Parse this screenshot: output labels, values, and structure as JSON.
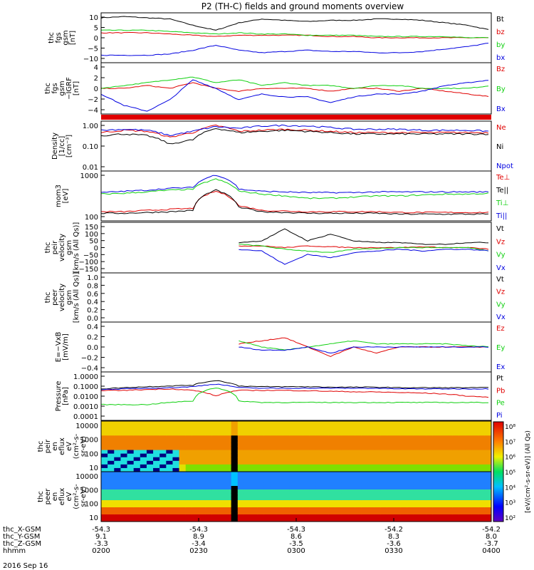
{
  "title": "P2 (TH-C) fields and ground moments overview",
  "date_label": "2016 Sep 16",
  "colors": {
    "black": "#000000",
    "red": "#e00000",
    "green": "#10d010",
    "blue": "#0000e0"
  },
  "chart_data": [
    {
      "type": "line",
      "ylabel": [
        "thc",
        "fgs",
        "gsm",
        "[nT]"
      ],
      "yticks": [
        "10",
        "5",
        "0",
        "−5",
        "−10"
      ],
      "ylim": [
        -10,
        10
      ],
      "series": [
        {
          "name": "Bt",
          "color": "#000000",
          "values": [
            8,
            8.5,
            8,
            7.5,
            5,
            3,
            6,
            7.5,
            7,
            6.5,
            7,
            7,
            7.5,
            7.5,
            7,
            6,
            5,
            3
          ]
        },
        {
          "name": "bz",
          "color": "#e00000",
          "values": [
            2,
            2,
            2,
            1.5,
            1,
            0.5,
            1,
            1,
            1,
            1,
            0.5,
            0.5,
            0,
            0,
            0,
            0,
            0,
            0
          ]
        },
        {
          "name": "by",
          "color": "#10d010",
          "values": [
            3,
            3,
            3,
            2.5,
            2,
            1.5,
            2,
            1.5,
            1.5,
            1,
            1,
            1,
            0.5,
            0.5,
            0.5,
            0.5,
            0,
            0
          ]
        },
        {
          "name": "bx",
          "color": "#0000e0",
          "values": [
            -7,
            -7,
            -7,
            -6.5,
            -5,
            -3,
            -5,
            -6,
            -5.5,
            -5,
            -5.5,
            -5.5,
            -6,
            -6,
            -5.5,
            -4.5,
            -3.5,
            -2
          ]
        }
      ]
    },
    {
      "type": "line",
      "ylabel": [
        "thc",
        "fgs",
        "gsm",
        "−IGRF",
        "[nT]"
      ],
      "yticks": [
        "4",
        "2",
        "0",
        "−2",
        "−4"
      ],
      "ylim": [
        -4.5,
        4.5
      ],
      "series": [
        {
          "name": "Bz",
          "color": "#e00000",
          "values": [
            0,
            0,
            0.5,
            0,
            1,
            0,
            -0.5,
            0,
            0,
            0,
            -0.5,
            0,
            0,
            -0.5,
            0,
            -0.5,
            -1,
            -1.5
          ]
        },
        {
          "name": "By",
          "color": "#10d010",
          "values": [
            0,
            0.5,
            1,
            1.5,
            2,
            1,
            1.5,
            0.5,
            1,
            0.5,
            0.5,
            0,
            0.5,
            0.5,
            0,
            0,
            0,
            0.5
          ]
        },
        {
          "name": "Bx",
          "color": "#0000e0",
          "values": [
            -1,
            -3,
            -4,
            -2,
            1.5,
            0,
            -2,
            -1,
            -1.5,
            -1.5,
            -2.5,
            -1.5,
            -1,
            -1,
            -0.5,
            0.5,
            1,
            1.5
          ]
        }
      ]
    },
    {
      "type": "line",
      "ylabel": [
        "Density",
        "[1/cc]",
        "[cm⁻³]"
      ],
      "yticks": [
        "1.00",
        "0.10",
        "0.01"
      ],
      "ylim": [
        0.01,
        1.2
      ],
      "log": true,
      "series": [
        {
          "name": "Ne",
          "color": "#e00000",
          "values": [
            0.4,
            0.5,
            0.45,
            0.25,
            0.4,
            0.8,
            0.45,
            0.5,
            0.55,
            0.5,
            0.45,
            0.4,
            0.4,
            0.4,
            0.4,
            0.4,
            0.4,
            0.4
          ]
        },
        {
          "name": "Ni",
          "color": "#000000",
          "values": [
            0.3,
            0.35,
            0.3,
            0.13,
            0.2,
            0.6,
            0.4,
            0.45,
            0.5,
            0.45,
            0.4,
            0.35,
            0.35,
            0.35,
            0.35,
            0.35,
            0.35,
            0.35
          ]
        },
        {
          "name": "Npot",
          "color": "#0000e0",
          "values": [
            0.5,
            0.55,
            0.5,
            0.3,
            0.45,
            0.7,
            0.6,
            0.75,
            0.8,
            0.75,
            0.65,
            0.55,
            0.55,
            0.55,
            0.5,
            0.5,
            0.5,
            0.45
          ]
        }
      ]
    },
    {
      "type": "line",
      "ylabel": [
        "mom3",
        "[eV]"
      ],
      "yticks": [
        "1000",
        "100"
      ],
      "ylim": [
        20,
        8000
      ],
      "log": true,
      "series": [
        {
          "name": "Te⊥",
          "color": "#e00000",
          "values": [
            60,
            60,
            70,
            80,
            90,
            700,
            120,
            70,
            65,
            60,
            60,
            60,
            60,
            55,
            55,
            55,
            55,
            55
          ]
        },
        {
          "name": "Te||",
          "color": "#000000",
          "values": [
            50,
            50,
            55,
            60,
            70,
            800,
            100,
            60,
            55,
            50,
            50,
            50,
            50,
            45,
            45,
            45,
            45,
            45
          ]
        },
        {
          "name": "Ti⊥",
          "color": "#10d010",
          "values": [
            500,
            550,
            650,
            800,
            900,
            3000,
            700,
            500,
            400,
            300,
            300,
            350,
            400,
            400,
            450,
            500,
            500,
            550
          ]
        },
        {
          "name": "Ti||",
          "color": "#0000e0",
          "values": [
            600,
            700,
            800,
            1000,
            1100,
            5000,
            900,
            700,
            650,
            600,
            600,
            600,
            650,
            650,
            650,
            650,
            650,
            650
          ]
        }
      ]
    },
    {
      "type": "line",
      "ylabel": [
        "thc",
        "peir",
        "velocity",
        "gsm",
        "[km/s (All Qs)]"
      ],
      "yticks": [
        "150",
        "100",
        "50",
        "0",
        "−50",
        "−100",
        "−150"
      ],
      "ylim": [
        -150,
        150
      ],
      "series": [
        {
          "name": "Vt",
          "color": "#000000",
          "values": [
            null,
            null,
            null,
            null,
            null,
            null,
            30,
            40,
            110,
            40,
            80,
            40,
            30,
            30,
            20,
            20,
            30,
            30
          ]
        },
        {
          "name": "Vz",
          "color": "#e00000",
          "values": [
            null,
            null,
            null,
            null,
            null,
            null,
            10,
            10,
            0,
            10,
            5,
            0,
            0,
            0,
            5,
            0,
            0,
            -10
          ]
        },
        {
          "name": "Vy",
          "color": "#10d010",
          "values": [
            null,
            null,
            null,
            null,
            null,
            null,
            20,
            10,
            -10,
            -20,
            -30,
            -10,
            -5,
            0,
            0,
            0,
            0,
            -20
          ]
        },
        {
          "name": "Vx",
          "color": "#0000e0",
          "values": [
            null,
            null,
            null,
            null,
            null,
            null,
            -10,
            -20,
            -100,
            -40,
            -60,
            -30,
            -20,
            -10,
            -20,
            -10,
            -10,
            -20
          ]
        }
      ]
    },
    {
      "type": "line",
      "ylabel": [
        "thc",
        "peer",
        "velocity",
        "gsm",
        "[km/s (All Qs)]"
      ],
      "yticks": [
        "1.0",
        "0.8",
        "0.6",
        "0.4",
        "0.2",
        "0.0"
      ],
      "ylim": [
        0,
        1
      ],
      "series": [
        {
          "name": "Vt",
          "color": "#000000",
          "values": []
        },
        {
          "name": "Vz",
          "color": "#e00000",
          "values": []
        },
        {
          "name": "Vy",
          "color": "#10d010",
          "values": []
        },
        {
          "name": "Vx",
          "color": "#0000e0",
          "values": []
        }
      ]
    },
    {
      "type": "line",
      "ylabel": [
        "E=−VxB",
        "[mV/m]"
      ],
      "yticks": [
        "0.4",
        "0.2",
        "0.0",
        "−0.2",
        "−0.4"
      ],
      "ylim": [
        -0.4,
        0.4
      ],
      "series": [
        {
          "name": "Ez",
          "color": "#e00000",
          "values": [
            null,
            null,
            null,
            null,
            null,
            null,
            0.05,
            0.1,
            0.15,
            0,
            -0.15,
            0,
            -0.1,
            0,
            0,
            0,
            0,
            0
          ]
        },
        {
          "name": "Ey",
          "color": "#10d010",
          "values": [
            null,
            null,
            null,
            null,
            null,
            null,
            0.1,
            0.0,
            -0.05,
            0.0,
            0.05,
            0.1,
            0.05,
            0.05,
            0.05,
            0.05,
            0.02,
            0.0
          ]
        },
        {
          "name": "Ex",
          "color": "#0000e0",
          "values": [
            null,
            null,
            null,
            null,
            null,
            null,
            0,
            -0.05,
            -0.05,
            0,
            -0.1,
            0,
            0,
            0,
            0,
            0,
            0,
            0
          ]
        }
      ]
    },
    {
      "type": "line",
      "ylabel": [
        "Pressure",
        "[nPa]"
      ],
      "yticks": [
        "1.0000",
        "0.1000",
        "0.0100",
        "0.0010",
        "0.0001"
      ],
      "ylim": [
        0.0001,
        1
      ],
      "log": true,
      "series": [
        {
          "name": "Pt",
          "color": "#000000",
          "values": [
            0.04,
            0.05,
            0.06,
            0.07,
            0.08,
            0.2,
            0.07,
            0.06,
            0.06,
            0.06,
            0.055,
            0.055,
            0.055,
            0.05,
            0.05,
            0.05,
            0.05,
            0.05
          ]
        },
        {
          "name": "Pb",
          "color": "#e00000",
          "values": [
            0.03,
            0.03,
            0.035,
            0.04,
            0.03,
            0.01,
            0.03,
            0.03,
            0.03,
            0.028,
            0.025,
            0.023,
            0.022,
            0.02,
            0.018,
            0.015,
            0.01,
            0.008
          ]
        },
        {
          "name": "Pe",
          "color": "#10d010",
          "values": [
            0.002,
            0.002,
            0.002,
            0.003,
            0.004,
            0.05,
            0.004,
            0.003,
            0.003,
            0.003,
            0.003,
            0.003,
            0.003,
            0.003,
            0.003,
            0.003,
            0.003,
            0.003
          ]
        },
        {
          "name": "Pi",
          "color": "#0000e0",
          "values": [
            0.035,
            0.04,
            0.045,
            0.05,
            0.06,
            0.1,
            0.05,
            0.045,
            0.045,
            0.045,
            0.045,
            0.045,
            0.045,
            0.04,
            0.04,
            0.04,
            0.04,
            0.04
          ]
        }
      ]
    },
    {
      "type": "heatmap",
      "ylabel": [
        "thc",
        "peir",
        "en",
        "eflux",
        "eV",
        "(cm²-s-",
        "sr-eV)"
      ],
      "yticks": [
        "10000",
        "1000",
        "100",
        "10"
      ]
    },
    {
      "type": "heatmap",
      "ylabel": [
        "thc",
        "peer",
        "en",
        "eflux",
        "eV",
        "(cm²-s-",
        "sr-eV)"
      ],
      "yticks": [
        "10000",
        "1000",
        "100",
        "10"
      ],
      "colorbar": {
        "label": "[eV/(cm²-s-sr-eV)] (All Qs)",
        "ticks": [
          "10⁸",
          "10⁷",
          "10⁶",
          "10⁵",
          "10⁴",
          "10³",
          "10²"
        ]
      }
    }
  ],
  "x_axis": {
    "row_labels": [
      "thc_X-GSM",
      "thc_Y-GSM",
      "thc_Z-GSM",
      "hhmm"
    ],
    "ticks": [
      {
        "x": "-54.3",
        "y": "9.1",
        "z": "-3.3",
        "t": "0200"
      },
      {
        "x": "-54.3",
        "y": "8.9",
        "z": "-3.4",
        "t": "0230"
      },
      {
        "x": "-54.3",
        "y": "8.6",
        "z": "-3.5",
        "t": "0300"
      },
      {
        "x": "-54.2",
        "y": "8.3",
        "z": "-3.6",
        "t": "0330"
      },
      {
        "x": "-54.2",
        "y": "8.0",
        "z": "-3.7",
        "t": "0400"
      }
    ]
  }
}
